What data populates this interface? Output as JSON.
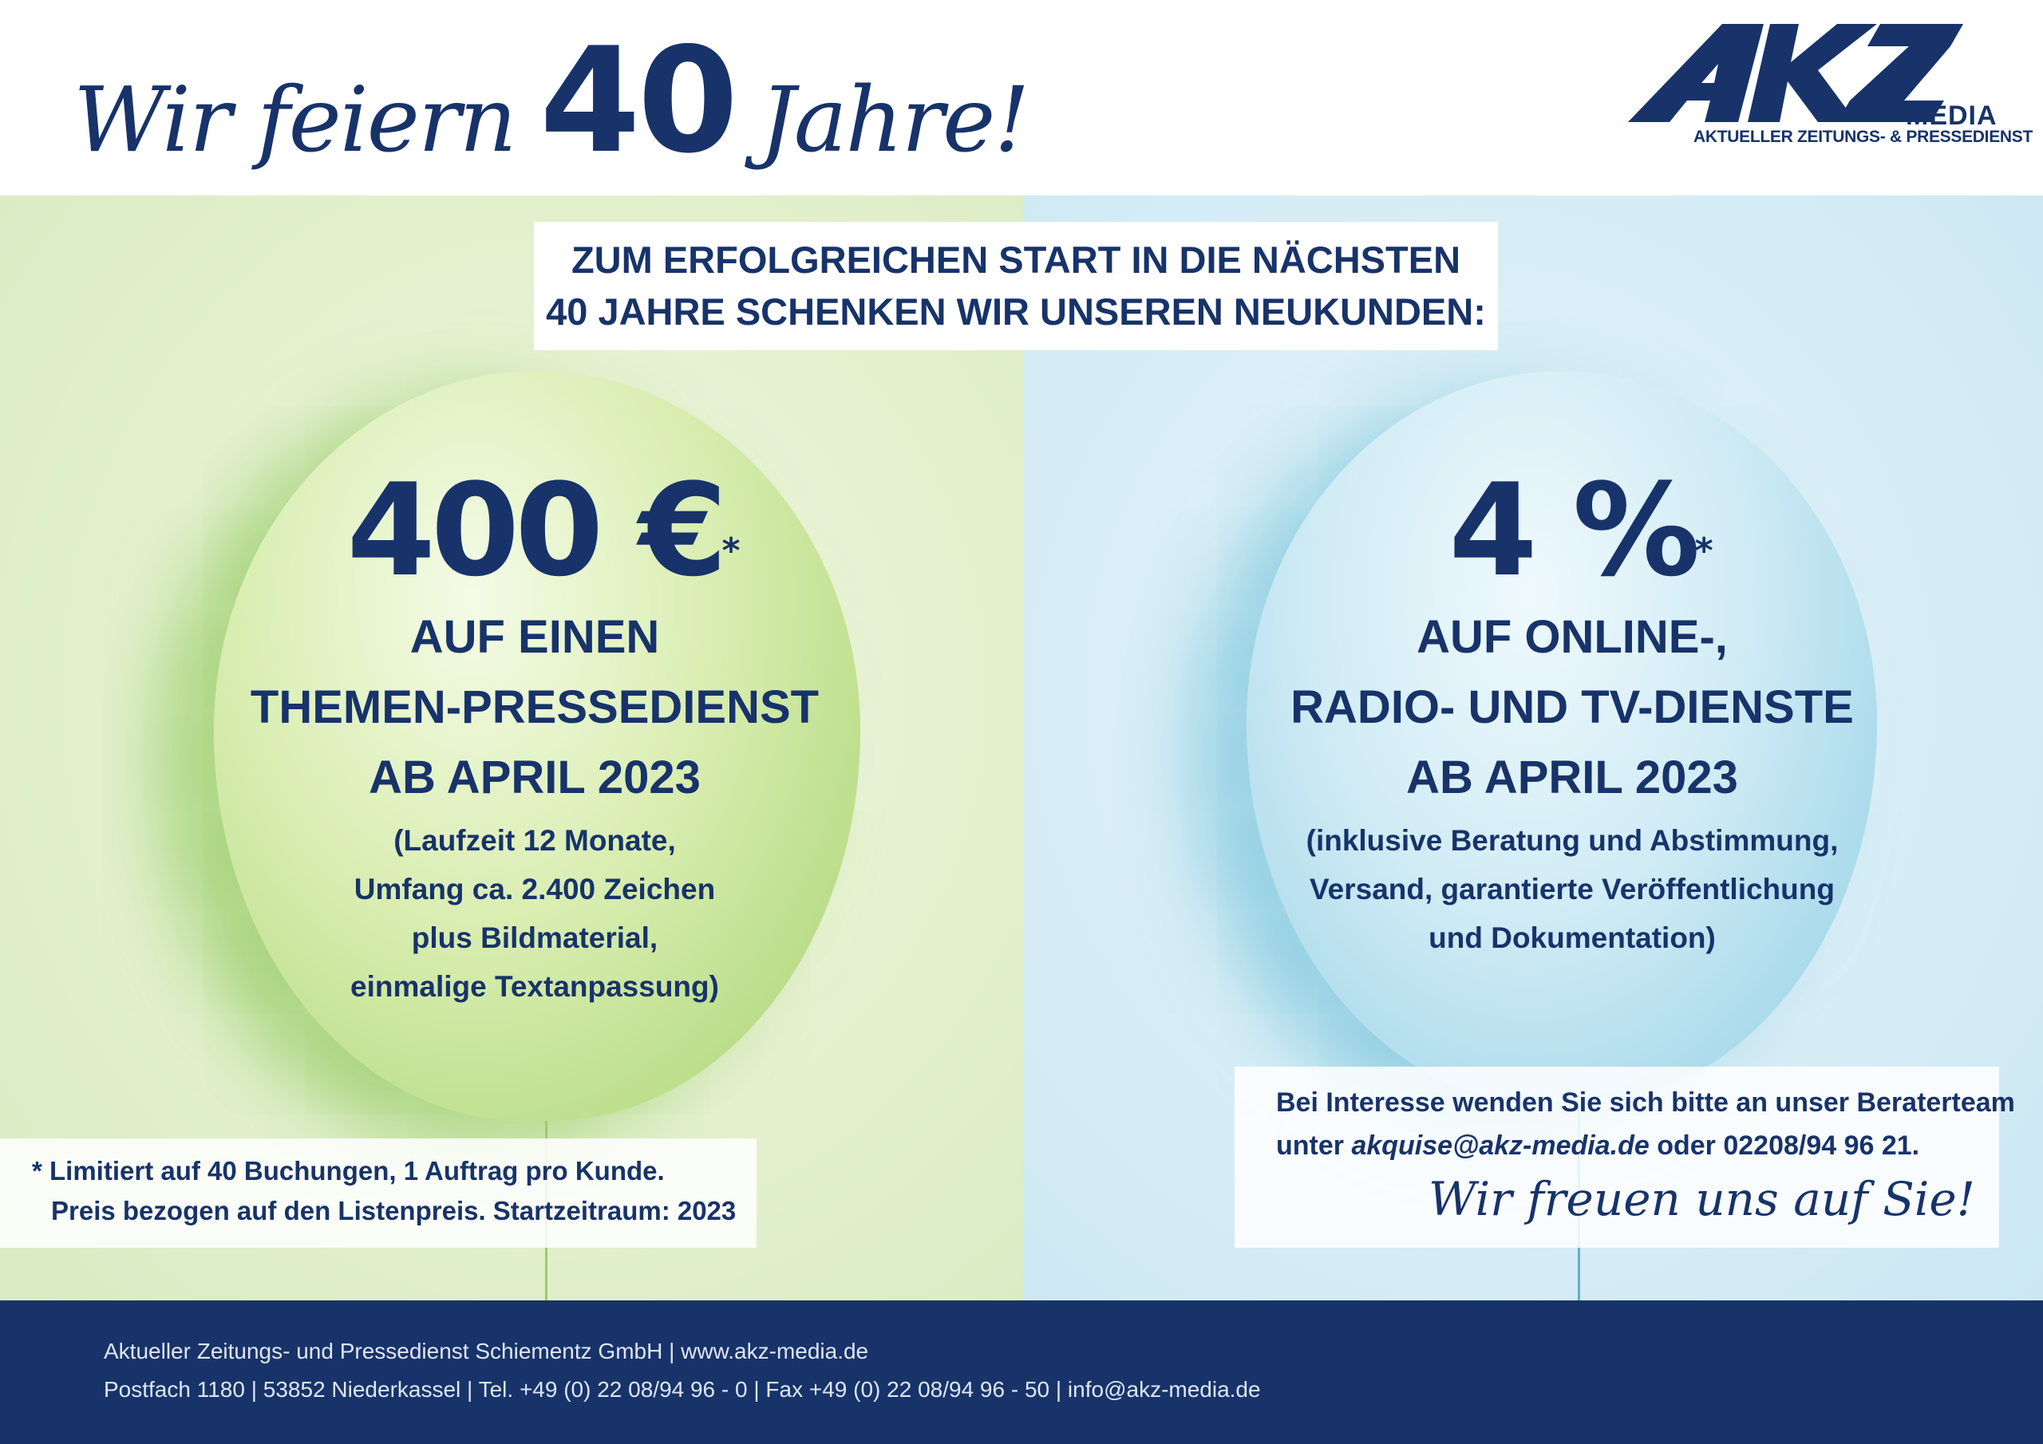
{
  "headline": {
    "part1": "Wir feiern",
    "number": "40",
    "part2": "Jahre!"
  },
  "logo": {
    "mark": "AKZ",
    "word": "MEDIA",
    "tagline": "AKTUELLER ZEITUNGS- & PRESSEDIENST"
  },
  "intro": {
    "line1": "ZUM ERFOLGREICHEN START IN DIE NÄCHSTEN",
    "line2": "40 JAHRE SCHENKEN WIR UNSEREN  NEUKUNDEN:"
  },
  "offer_left": {
    "amount": "400 €",
    "asterisk": "*",
    "lines": [
      "AUF EINEN",
      "THEMEN-PRESSEDIENST",
      "AB APRIL 2023"
    ],
    "details": [
      "(Laufzeit 12 Monate,",
      "Umfang ca. 2.400 Zeichen",
      "plus Bildmaterial,",
      "einmalige Textanpassung)"
    ]
  },
  "offer_right": {
    "amount": "4 %",
    "asterisk": "*",
    "lines": [
      "AUF ONLINE-,",
      "RADIO- UND TV-DIENSTE",
      "AB APRIL 2023"
    ],
    "details": [
      "(inklusive Beratung und Abstimmung,",
      "Versand, garantierte Veröffentlichung",
      "und Dokumentation)"
    ]
  },
  "footnote": {
    "line1": "* Limitiert auf 40 Buchungen, 1 Auftrag pro Kunde.",
    "line2": "Preis bezogen auf den Listenpreis. Startzeitraum: 2023"
  },
  "contact": {
    "line1": "Bei Interesse wenden Sie sich bitte an unser Beraterteam",
    "line2_prefix": "unter ",
    "email": "akquise@akz-media.de",
    "line2_suffix": " oder 02208/94 96 21.",
    "sign_off": "Wir freuen uns auf Sie!"
  },
  "footer": {
    "line1": "Aktueller Zeitungs- und Pressedienst Schiementz GmbH | www.akz-media.de",
    "line2": "Postfach 1180 | 53852 Niederkassel | Tel. +49 (0) 22 08/94 96 - 0 | Fax +49 (0) 22 08/94 96 - 50 | info@akz-media.de"
  },
  "colors": {
    "brand_navy": "#17336a",
    "panel_green": "#e2f0cd",
    "panel_blue": "#d6edf6"
  }
}
